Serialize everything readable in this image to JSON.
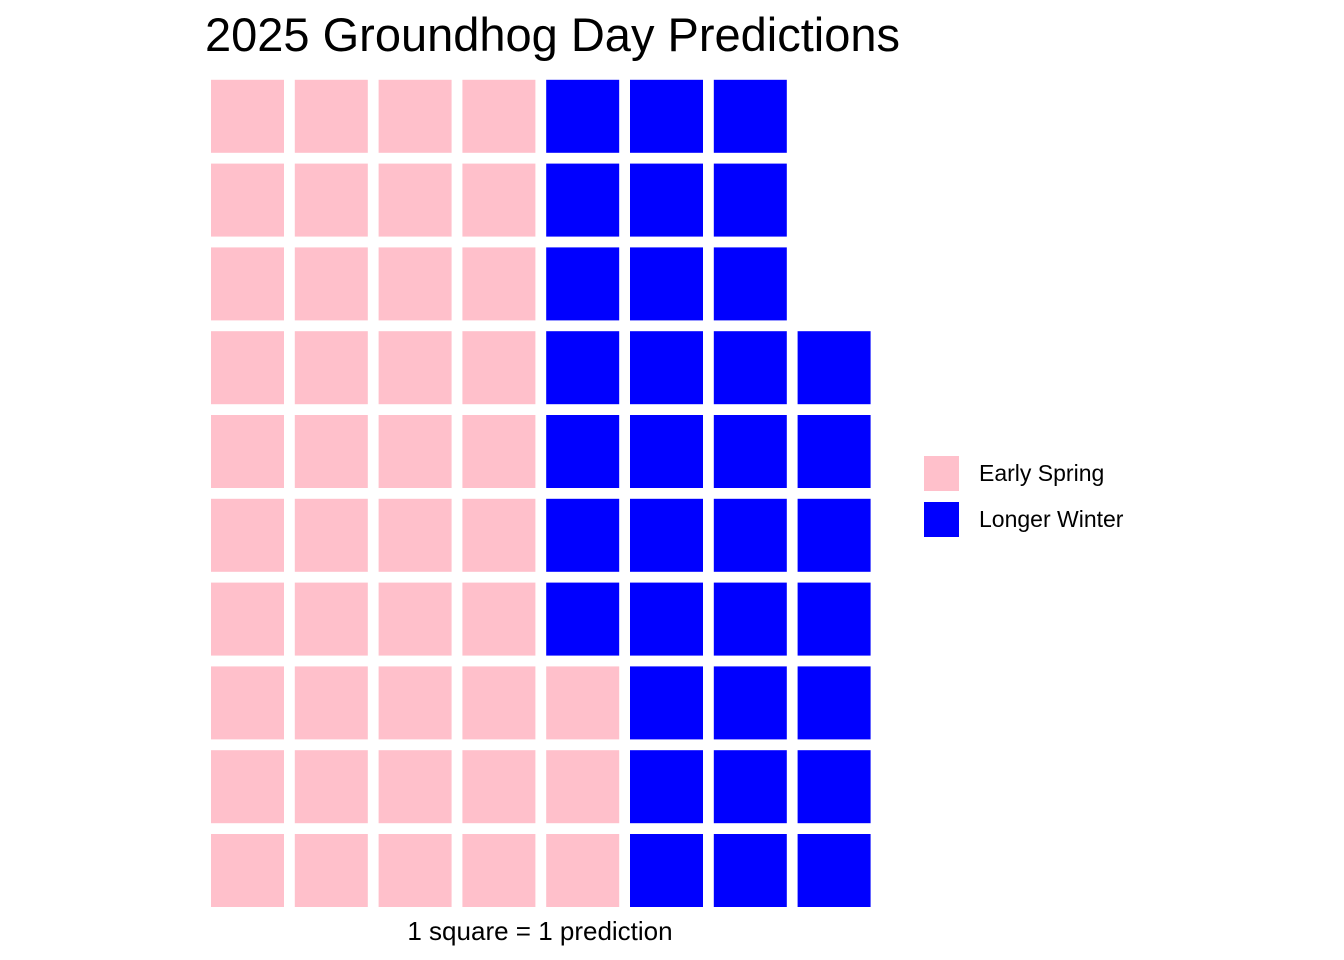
{
  "chart_data": {
    "type": "waffle",
    "title": "2025 Groundhog Day Predictions",
    "caption": "1 square = 1 prediction",
    "rows": 10,
    "columns": 8,
    "categories": [
      {
        "name": "Early Spring",
        "count": 43,
        "color": "#FFC0CB"
      },
      {
        "name": "Longer Winter",
        "count": 34,
        "color": "#0000FF"
      }
    ],
    "fill_order": "column-wise, bottom to top, left to right",
    "legend": {
      "position": "right",
      "entries": [
        "Early Spring",
        "Longer Winter"
      ]
    },
    "grid": false,
    "axes": false
  }
}
